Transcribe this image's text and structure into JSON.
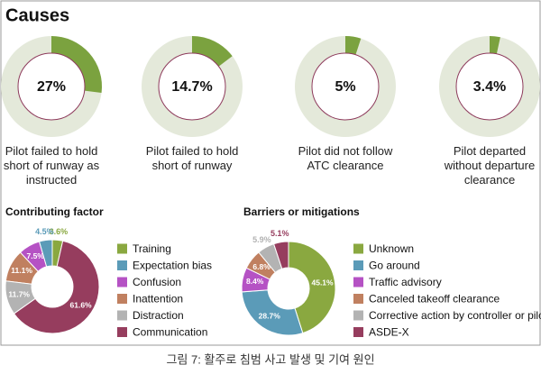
{
  "heading": "Causes",
  "caption": "그림 7: 활주로 침범 사고 발생 및 기여 원인",
  "chart_data": [
    {
      "type": "gauge",
      "title": "Pilot failed to hold short of runway as instructed",
      "values": [
        27
      ],
      "value_labels": [
        "27%"
      ],
      "ylim": [
        0,
        100
      ],
      "color": "#7ba23f",
      "track_color": "#e4e9da"
    },
    {
      "type": "gauge",
      "title": "Pilot failed to hold short of runway",
      "values": [
        14.7
      ],
      "value_labels": [
        "14.7%"
      ],
      "ylim": [
        0,
        100
      ],
      "color": "#7ba23f",
      "track_color": "#e4e9da"
    },
    {
      "type": "gauge",
      "title": "Pilot did not follow ATC clearance",
      "values": [
        5
      ],
      "value_labels": [
        "5%"
      ],
      "ylim": [
        0,
        100
      ],
      "color": "#7ba23f",
      "track_color": "#e4e9da"
    },
    {
      "type": "gauge",
      "title": "Pilot departed without departure clearance",
      "values": [
        3.4
      ],
      "value_labels": [
        "3.4%"
      ],
      "ylim": [
        0,
        100
      ],
      "color": "#7ba23f",
      "track_color": "#e4e9da"
    },
    {
      "type": "donut",
      "title": "Contributing factor",
      "direction": "counterclockwise",
      "categories": [
        "Training",
        "Expectation bias",
        "Confusion",
        "Inattention",
        "Distraction",
        "Communication"
      ],
      "values": [
        3.6,
        4.5,
        7.5,
        11.1,
        11.7,
        61.6
      ],
      "value_labels": [
        "3.6%",
        "4.5%",
        "7.5%",
        "11.1%",
        "11.7%",
        "61.6%"
      ],
      "colors": [
        "#8aa840",
        "#5b9bb8",
        "#b552c4",
        "#c08060",
        "#b3b3b3",
        "#963d5e"
      ]
    },
    {
      "type": "donut",
      "title": "Barriers or mitigations",
      "direction": "clockwise",
      "categories": [
        "Unknown",
        "Go around",
        "Traffic advisory",
        "Canceled takeoff clearance",
        "Corrective action by controller or pilot",
        "ASDE-X"
      ],
      "values": [
        45.1,
        28.7,
        8.4,
        6.8,
        5.9,
        5.1
      ],
      "value_labels": [
        "45.1%",
        "28.7%",
        "8.4%",
        "6.8%",
        "5.9%",
        "5.1%"
      ],
      "colors": [
        "#8aa840",
        "#5b9bb8",
        "#b552c4",
        "#c08060",
        "#b3b3b3",
        "#963d5e"
      ]
    }
  ]
}
